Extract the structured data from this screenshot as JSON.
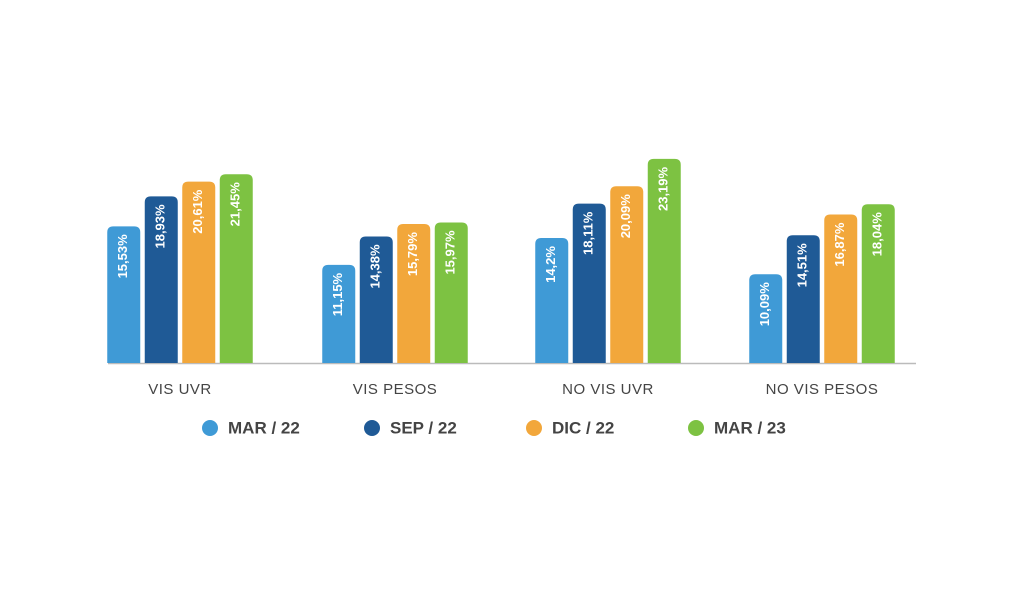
{
  "chart_data": {
    "type": "bar",
    "categories": [
      "VIS UVR",
      "VIS PESOS",
      "NO VIS UVR",
      "NO VIS PESOS"
    ],
    "series": [
      {
        "name": "MAR / 22",
        "color": "#3f9ad6",
        "values": [
          15.53,
          11.15,
          14.2,
          10.09
        ],
        "value_labels": [
          "15,53%",
          "11,15%",
          "14,2%",
          "10,09%"
        ]
      },
      {
        "name": "SEP / 22",
        "color": "#1f5a96",
        "values": [
          18.93,
          14.38,
          18.11,
          14.51
        ],
        "value_labels": [
          "18,93%",
          "14,38%",
          "18,11%",
          "14,51%"
        ]
      },
      {
        "name": "DIC / 22",
        "color": "#f2a73b",
        "values": [
          20.61,
          15.79,
          20.09,
          16.87
        ],
        "value_labels": [
          "20,61%",
          "15,79%",
          "20,09%",
          "16,87%"
        ]
      },
      {
        "name": "MAR / 23",
        "color": "#7dc242",
        "values": [
          21.45,
          15.97,
          23.19,
          18.04
        ],
        "value_labels": [
          "21,45%",
          "15,97%",
          "23,19%",
          "18,04%"
        ]
      }
    ]
  }
}
